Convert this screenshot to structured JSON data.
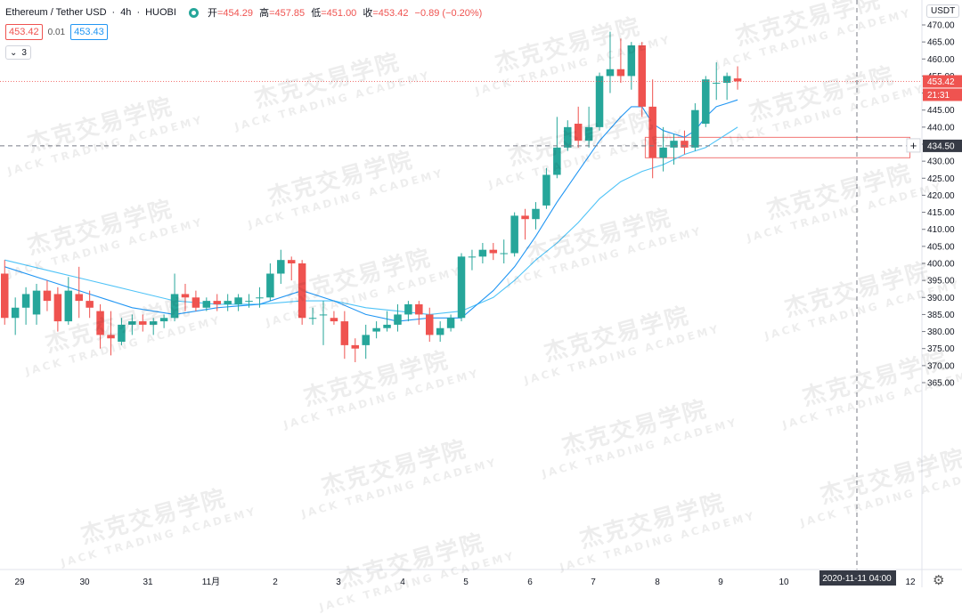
{
  "header": {
    "symbol": "Ethereum / Tether USD",
    "interval": "4h",
    "exchange": "HUOBI",
    "ohlc": {
      "open_label": "开",
      "open": "=454.29",
      "high_label": "高",
      "high": "=457.85",
      "low_label": "低",
      "low": "=451.00",
      "close_label": "收",
      "close": "=453.42",
      "change": "−0.89 (−0.20%)"
    },
    "bid": "453.42",
    "spread": "0.01",
    "ask": "453.43",
    "indicators_count": "3"
  },
  "currency": "USDT",
  "watermark": {
    "cn": "杰克交易学院",
    "en": "JACK TRADING ACADEMY"
  },
  "colors": {
    "up": "#26a69a",
    "down": "#ef5350",
    "ma_fast": "#2196f3",
    "ma_slow": "#4fc3f7",
    "crosshair": "#787b86",
    "zone": "#ef5350"
  },
  "chart_data": {
    "type": "candlestick",
    "ylim": [
      360,
      478
    ],
    "y_ticks": [
      365,
      370,
      375,
      380,
      385,
      390,
      395,
      400,
      405,
      410,
      415,
      420,
      425,
      430,
      435,
      440,
      445,
      450,
      455,
      460,
      465,
      470
    ],
    "x_ticks": [
      "29",
      "30",
      "31",
      "11月",
      "2",
      "3",
      "4",
      "5",
      "6",
      "7",
      "8",
      "9",
      "10",
      "11",
      "12"
    ],
    "candles": [
      {
        "o": 397,
        "h": 401,
        "l": 382,
        "c": 384
      },
      {
        "o": 384,
        "h": 390,
        "l": 379,
        "c": 387
      },
      {
        "o": 387,
        "h": 393,
        "l": 382,
        "c": 391
      },
      {
        "o": 385,
        "h": 394,
        "l": 382,
        "c": 392
      },
      {
        "o": 392,
        "h": 395,
        "l": 386,
        "c": 389
      },
      {
        "o": 391,
        "h": 393,
        "l": 380,
        "c": 383
      },
      {
        "o": 383,
        "h": 396,
        "l": 382,
        "c": 392
      },
      {
        "o": 391,
        "h": 399,
        "l": 384,
        "c": 389
      },
      {
        "o": 389,
        "h": 392,
        "l": 384,
        "c": 387
      },
      {
        "o": 386,
        "h": 388,
        "l": 375,
        "c": 379
      },
      {
        "o": 379,
        "h": 386,
        "l": 373,
        "c": 378
      },
      {
        "o": 377,
        "h": 384,
        "l": 376,
        "c": 382
      },
      {
        "o": 382,
        "h": 385,
        "l": 379,
        "c": 383
      },
      {
        "o": 383,
        "h": 385,
        "l": 380,
        "c": 382
      },
      {
        "o": 382,
        "h": 384,
        "l": 379,
        "c": 383
      },
      {
        "o": 383,
        "h": 385,
        "l": 381,
        "c": 384
      },
      {
        "o": 384,
        "h": 397,
        "l": 383,
        "c": 391
      },
      {
        "o": 391,
        "h": 394,
        "l": 386,
        "c": 390
      },
      {
        "o": 390,
        "h": 392,
        "l": 386,
        "c": 387
      },
      {
        "o": 387,
        "h": 390,
        "l": 386,
        "c": 389
      },
      {
        "o": 389,
        "h": 391,
        "l": 386,
        "c": 388
      },
      {
        "o": 388,
        "h": 391,
        "l": 386,
        "c": 389
      },
      {
        "o": 388,
        "h": 391,
        "l": 386,
        "c": 390
      },
      {
        "o": 389,
        "h": 391,
        "l": 387,
        "c": 389
      },
      {
        "o": 390,
        "h": 393,
        "l": 387,
        "c": 390
      },
      {
        "o": 390,
        "h": 400,
        "l": 389,
        "c": 397
      },
      {
        "o": 397,
        "h": 404,
        "l": 394,
        "c": 401
      },
      {
        "o": 401,
        "h": 402,
        "l": 395,
        "c": 400
      },
      {
        "o": 400,
        "h": 401,
        "l": 382,
        "c": 384
      },
      {
        "o": 384,
        "h": 387,
        "l": 382,
        "c": 384
      },
      {
        "o": 385,
        "h": 389,
        "l": 376,
        "c": 385
      },
      {
        "o": 384,
        "h": 386,
        "l": 382,
        "c": 383
      },
      {
        "o": 383,
        "h": 386,
        "l": 372,
        "c": 376
      },
      {
        "o": 376,
        "h": 378,
        "l": 371,
        "c": 375
      },
      {
        "o": 376,
        "h": 382,
        "l": 372,
        "c": 379
      },
      {
        "o": 380,
        "h": 383,
        "l": 378,
        "c": 381
      },
      {
        "o": 381,
        "h": 386,
        "l": 380,
        "c": 382
      },
      {
        "o": 382,
        "h": 388,
        "l": 380,
        "c": 385
      },
      {
        "o": 385,
        "h": 389,
        "l": 383,
        "c": 388
      },
      {
        "o": 388,
        "h": 389,
        "l": 382,
        "c": 385
      },
      {
        "o": 385,
        "h": 387,
        "l": 377,
        "c": 379
      },
      {
        "o": 379,
        "h": 383,
        "l": 377,
        "c": 381
      },
      {
        "o": 381,
        "h": 385,
        "l": 380,
        "c": 384
      },
      {
        "o": 384,
        "h": 403,
        "l": 383,
        "c": 402
      },
      {
        "o": 402,
        "h": 404,
        "l": 398,
        "c": 402
      },
      {
        "o": 402,
        "h": 406,
        "l": 400,
        "c": 404
      },
      {
        "o": 404,
        "h": 406,
        "l": 401,
        "c": 403
      },
      {
        "o": 403,
        "h": 407,
        "l": 400,
        "c": 403
      },
      {
        "o": 403,
        "h": 415,
        "l": 402,
        "c": 414
      },
      {
        "o": 414,
        "h": 416,
        "l": 407,
        "c": 413
      },
      {
        "o": 413,
        "h": 418,
        "l": 410,
        "c": 416
      },
      {
        "o": 417,
        "h": 428,
        "l": 416,
        "c": 426
      },
      {
        "o": 426,
        "h": 443,
        "l": 425,
        "c": 434
      },
      {
        "o": 434,
        "h": 442,
        "l": 433,
        "c": 440
      },
      {
        "o": 441,
        "h": 446,
        "l": 434,
        "c": 436
      },
      {
        "o": 436,
        "h": 446,
        "l": 434,
        "c": 440
      },
      {
        "o": 440,
        "h": 456,
        "l": 439,
        "c": 455
      },
      {
        "o": 455,
        "h": 468,
        "l": 450,
        "c": 457
      },
      {
        "o": 457,
        "h": 466,
        "l": 453,
        "c": 455
      },
      {
        "o": 455,
        "h": 465,
        "l": 451,
        "c": 464
      },
      {
        "o": 464,
        "h": 465,
        "l": 443,
        "c": 446
      },
      {
        "o": 446,
        "h": 454,
        "l": 425,
        "c": 431
      },
      {
        "o": 431,
        "h": 440,
        "l": 427,
        "c": 434
      },
      {
        "o": 434,
        "h": 438,
        "l": 429,
        "c": 436
      },
      {
        "o": 436,
        "h": 439,
        "l": 432,
        "c": 434
      },
      {
        "o": 434,
        "h": 447,
        "l": 433,
        "c": 445
      },
      {
        "o": 441,
        "h": 455,
        "l": 440,
        "c": 454
      },
      {
        "o": 453,
        "h": 459,
        "l": 448,
        "c": 453
      },
      {
        "o": 453,
        "h": 456,
        "l": 448,
        "c": 455
      },
      {
        "o": 454.29,
        "h": 457.85,
        "l": 451.0,
        "c": 453.42
      }
    ],
    "ma_fast": [
      [
        0,
        399
      ],
      [
        4,
        395
      ],
      [
        8,
        391
      ],
      [
        12,
        387
      ],
      [
        16,
        385
      ],
      [
        20,
        387
      ],
      [
        24,
        388
      ],
      [
        28,
        392
      ],
      [
        31,
        389
      ],
      [
        34,
        385
      ],
      [
        37,
        383
      ],
      [
        40,
        384
      ],
      [
        43,
        384
      ],
      [
        46,
        392
      ],
      [
        48,
        399
      ],
      [
        50,
        408
      ],
      [
        52,
        418
      ],
      [
        54,
        427
      ],
      [
        56,
        436
      ],
      [
        58,
        443
      ],
      [
        59,
        446
      ],
      [
        60,
        446
      ],
      [
        61,
        441
      ],
      [
        62,
        439
      ],
      [
        63,
        438
      ],
      [
        64,
        437
      ],
      [
        65,
        439
      ],
      [
        66,
        443
      ],
      [
        67,
        446
      ],
      [
        68,
        447
      ],
      [
        69,
        448
      ]
    ],
    "ma_slow": [
      [
        0,
        401
      ],
      [
        4,
        398
      ],
      [
        8,
        395
      ],
      [
        12,
        392
      ],
      [
        16,
        389
      ],
      [
        20,
        388
      ],
      [
        24,
        388
      ],
      [
        28,
        389
      ],
      [
        31,
        389
      ],
      [
        34,
        387
      ],
      [
        37,
        386
      ],
      [
        40,
        385
      ],
      [
        43,
        386
      ],
      [
        46,
        390
      ],
      [
        48,
        395
      ],
      [
        50,
        401
      ],
      [
        52,
        406
      ],
      [
        54,
        412
      ],
      [
        56,
        419
      ],
      [
        58,
        424
      ],
      [
        60,
        427
      ],
      [
        62,
        429
      ],
      [
        64,
        432
      ],
      [
        66,
        434
      ],
      [
        67,
        436
      ],
      [
        68,
        438
      ],
      [
        69,
        440
      ]
    ],
    "crosshair_price": "434.50",
    "crosshair_time": "2020-11-11   04:00",
    "last_price": "453.42",
    "countdown": "21:31",
    "zone": {
      "start_index": 61,
      "end_index": 86,
      "top": 437,
      "bottom": 431
    }
  }
}
